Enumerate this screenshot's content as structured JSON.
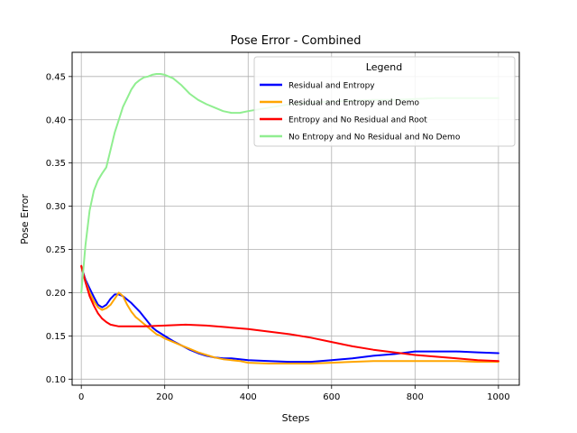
{
  "chart_data": {
    "type": "line",
    "title": "Pose Error - Combined",
    "xlabel": "Steps",
    "ylabel": "Pose Error",
    "xlim": [
      -22,
      1050
    ],
    "ylim": [
      0.093,
      0.478
    ],
    "xticks": [
      0,
      200,
      400,
      600,
      800,
      1000
    ],
    "yticks": [
      0.1,
      0.15,
      0.2,
      0.25,
      0.3,
      0.35,
      0.4,
      0.45
    ],
    "grid": true,
    "legend": {
      "title": "Legend",
      "placement": "top-right"
    },
    "series": [
      {
        "name": "Residual and Entropy",
        "color": "#0000ff",
        "x": [
          0,
          10,
          20,
          30,
          40,
          50,
          60,
          70,
          80,
          90,
          100,
          110,
          120,
          130,
          140,
          150,
          160,
          170,
          180,
          190,
          200,
          220,
          240,
          260,
          280,
          300,
          320,
          340,
          360,
          380,
          400,
          450,
          500,
          550,
          600,
          650,
          700,
          750,
          800,
          850,
          900,
          950,
          1000
        ],
        "y": [
          0.23,
          0.215,
          0.205,
          0.195,
          0.186,
          0.183,
          0.186,
          0.193,
          0.198,
          0.198,
          0.196,
          0.192,
          0.188,
          0.183,
          0.178,
          0.172,
          0.166,
          0.16,
          0.156,
          0.153,
          0.15,
          0.144,
          0.139,
          0.134,
          0.13,
          0.127,
          0.125,
          0.124,
          0.124,
          0.123,
          0.122,
          0.121,
          0.12,
          0.12,
          0.122,
          0.124,
          0.127,
          0.129,
          0.132,
          0.132,
          0.132,
          0.131,
          0.13
        ]
      },
      {
        "name": "Residual and Entropy and Demo",
        "color": "#ffa500",
        "x": [
          0,
          10,
          20,
          30,
          40,
          50,
          60,
          70,
          80,
          90,
          100,
          110,
          120,
          130,
          140,
          150,
          160,
          170,
          180,
          190,
          200,
          220,
          240,
          260,
          280,
          300,
          320,
          340,
          360,
          380,
          400,
          450,
          500,
          550,
          600,
          650,
          700,
          750,
          800,
          850,
          900,
          950,
          1000
        ],
        "y": [
          0.23,
          0.213,
          0.2,
          0.19,
          0.183,
          0.18,
          0.182,
          0.186,
          0.193,
          0.2,
          0.196,
          0.186,
          0.178,
          0.172,
          0.168,
          0.164,
          0.16,
          0.156,
          0.152,
          0.15,
          0.147,
          0.143,
          0.139,
          0.135,
          0.131,
          0.128,
          0.125,
          0.123,
          0.122,
          0.121,
          0.119,
          0.118,
          0.118,
          0.118,
          0.119,
          0.12,
          0.121,
          0.121,
          0.121,
          0.121,
          0.121,
          0.12,
          0.12
        ]
      },
      {
        "name": "Entropy and No Residual and Root",
        "color": "#ff0000",
        "x": [
          0,
          10,
          20,
          30,
          40,
          50,
          60,
          70,
          80,
          90,
          100,
          150,
          200,
          250,
          300,
          350,
          400,
          450,
          500,
          550,
          600,
          650,
          700,
          750,
          800,
          850,
          900,
          950,
          1000
        ],
        "y": [
          0.231,
          0.212,
          0.196,
          0.185,
          0.176,
          0.17,
          0.166,
          0.163,
          0.162,
          0.161,
          0.161,
          0.161,
          0.162,
          0.163,
          0.162,
          0.16,
          0.158,
          0.155,
          0.152,
          0.148,
          0.143,
          0.138,
          0.134,
          0.131,
          0.128,
          0.126,
          0.124,
          0.122,
          0.121
        ]
      },
      {
        "name": "No Entropy and No Residual and No Demo",
        "color": "#90ee90",
        "x": [
          0,
          10,
          20,
          30,
          40,
          50,
          60,
          70,
          80,
          90,
          100,
          110,
          120,
          130,
          140,
          150,
          160,
          170,
          180,
          190,
          200,
          220,
          240,
          260,
          280,
          300,
          320,
          340,
          360,
          380,
          400,
          450,
          500,
          550,
          600,
          650,
          700,
          750,
          800,
          850,
          900,
          950,
          1000
        ],
        "y": [
          0.2,
          0.255,
          0.295,
          0.318,
          0.33,
          0.338,
          0.345,
          0.365,
          0.385,
          0.4,
          0.415,
          0.425,
          0.435,
          0.442,
          0.446,
          0.449,
          0.45,
          0.452,
          0.453,
          0.453,
          0.452,
          0.448,
          0.44,
          0.43,
          0.423,
          0.418,
          0.414,
          0.41,
          0.408,
          0.408,
          0.41,
          0.414,
          0.418,
          0.42,
          0.421,
          0.422,
          0.423,
          0.423,
          0.424,
          0.425,
          0.425,
          0.425,
          0.425
        ]
      }
    ]
  }
}
